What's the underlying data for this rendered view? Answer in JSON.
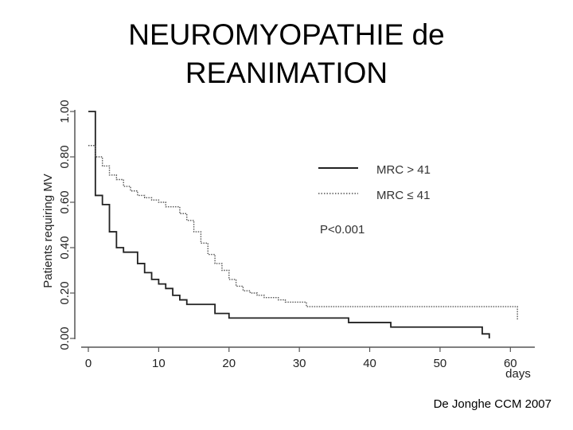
{
  "slide": {
    "title_line1": "NEUROMYOPATHIE de",
    "title_line2": "REANIMATION",
    "citation": "De Jonghe CCM 2007"
  },
  "chart_data": {
    "type": "line",
    "subtype": "kaplan-meier-step",
    "ylabel": "Patients requiring MV",
    "xlabel": "days",
    "xlim": [
      0,
      62
    ],
    "ylim": [
      0,
      1.0
    ],
    "x_ticks": [
      "0",
      "10",
      "20",
      "30",
      "40",
      "50",
      "60"
    ],
    "y_ticks": [
      "0.00",
      "0.20",
      "0.40",
      "0.60",
      "0.80",
      "1.00"
    ],
    "annotation": "P<0.001",
    "series": [
      {
        "name": "MRC > 41",
        "style": "solid",
        "color": "#222222",
        "x": [
          0,
          1,
          2,
          3,
          4,
          5,
          7,
          8,
          9,
          10,
          11,
          12,
          13,
          14,
          16,
          18,
          20,
          37,
          43,
          56,
          57,
          57
        ],
        "y": [
          1.0,
          0.63,
          0.59,
          0.47,
          0.4,
          0.38,
          0.33,
          0.29,
          0.26,
          0.24,
          0.22,
          0.19,
          0.17,
          0.15,
          0.15,
          0.11,
          0.09,
          0.07,
          0.05,
          0.02,
          0.02,
          0.0
        ]
      },
      {
        "name": "MRC ≤ 41",
        "style": "dotted",
        "color": "#555555",
        "x": [
          0,
          1,
          2,
          3,
          4,
          5,
          6,
          7,
          8,
          9,
          10,
          11,
          13,
          14,
          15,
          16,
          17,
          18,
          19,
          20,
          21,
          22,
          23,
          24,
          25,
          27,
          28,
          31,
          61,
          61
        ],
        "y": [
          0.85,
          0.8,
          0.76,
          0.72,
          0.7,
          0.67,
          0.65,
          0.63,
          0.62,
          0.61,
          0.6,
          0.58,
          0.55,
          0.52,
          0.47,
          0.42,
          0.37,
          0.33,
          0.3,
          0.26,
          0.23,
          0.21,
          0.2,
          0.19,
          0.18,
          0.17,
          0.16,
          0.14,
          0.14,
          0.08
        ]
      }
    ]
  }
}
